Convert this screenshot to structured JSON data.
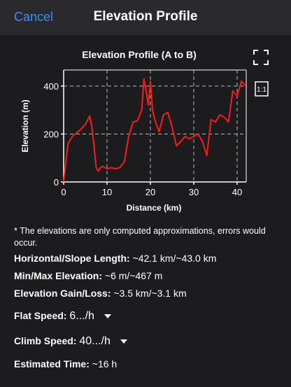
{
  "header": {
    "cancel_label": "Cancel",
    "title": "Elevation Profile"
  },
  "icons": {
    "fullscreen": "fullscreen-icon",
    "aspect": "aspect-ratio-icon",
    "aspect_label": "1:1"
  },
  "chart_data": {
    "type": "line",
    "title": "Elevation Profile (A to B)",
    "xlabel": "Distance (km)",
    "ylabel": "Elevation (m)",
    "xlim": [
      0,
      42.1
    ],
    "ylim": [
      0,
      467
    ],
    "xticks": [
      0,
      10,
      20,
      30,
      40
    ],
    "yticks": [
      0,
      200,
      400
    ],
    "grid": true,
    "series": [
      {
        "color": "#ff1a1a",
        "x": [
          0,
          1,
          2,
          3,
          4,
          5,
          6,
          6.5,
          7,
          7.5,
          8,
          8.5,
          9,
          10,
          11,
          12,
          13,
          14,
          15,
          16,
          17,
          18,
          18.5,
          19,
          19.5,
          20,
          20.5,
          21,
          22,
          23,
          24,
          25,
          26,
          27,
          28,
          29,
          30,
          31,
          32,
          33,
          34,
          35,
          36,
          37,
          38,
          39,
          40,
          41,
          42
        ],
        "y": [
          0,
          160,
          190,
          205,
          220,
          240,
          275,
          230,
          150,
          60,
          45,
          60,
          65,
          55,
          60,
          55,
          60,
          85,
          190,
          250,
          255,
          300,
          430,
          380,
          320,
          420,
          300,
          260,
          210,
          280,
          290,
          230,
          150,
          170,
          190,
          180,
          190,
          200,
          170,
          110,
          260,
          250,
          280,
          270,
          250,
          380,
          360,
          420,
          400
        ]
      }
    ]
  },
  "note": "* The elevations are only computed approximations, errors would occur.",
  "stats": {
    "length_label": "Horizontal/Slope Length:",
    "length_value": "~42.1 km/~43.0 km",
    "minmax_label": "Min/Max Elevation:",
    "minmax_value": "~6 m/~467 m",
    "gain_label": "Elevation Gain/Loss:",
    "gain_value": "~3.5 km/~3.1 km",
    "flat_label": "Flat Speed:",
    "flat_value": "6.../h",
    "climb_label": "Climb Speed:",
    "climb_value": "40.../h",
    "time_label": "Estimated Time:",
    "time_value": "~16 h"
  }
}
